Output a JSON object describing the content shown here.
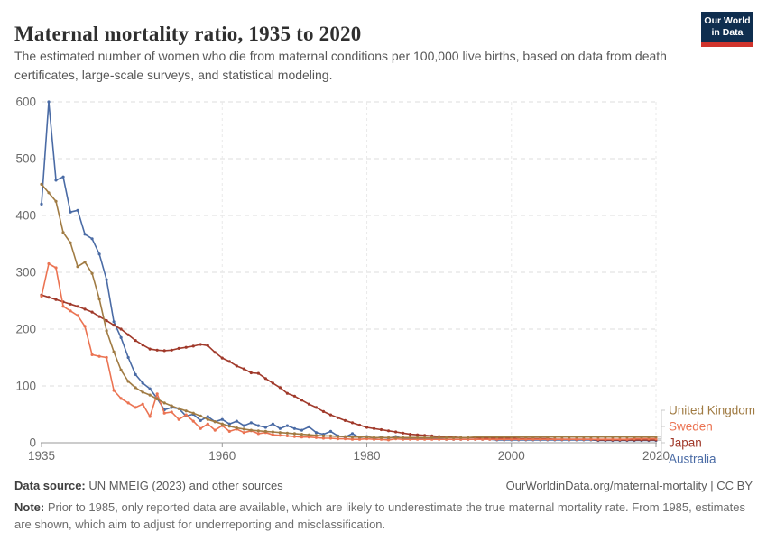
{
  "header": {
    "title": "Maternal mortality ratio, 1935 to 2020",
    "subtitle": "The estimated number of women who die from maternal conditions per 100,000 live births, based on data from death certificates, large-scale surveys, and statistical modeling.",
    "logo": {
      "line1": "Our World",
      "line2": "in Data",
      "bg_color": "#0f2e4f",
      "accent_color": "#d0342c"
    }
  },
  "chart_data": {
    "type": "line",
    "title": "Maternal mortality ratio, 1935 to 2020",
    "ylabel": "",
    "xlabel": "",
    "ylim": [
      0,
      600
    ],
    "yticks": [
      0,
      100,
      200,
      300,
      400,
      500,
      600
    ],
    "xticks": [
      1935,
      1960,
      1980,
      2000,
      2020
    ],
    "start_year": 1935,
    "end_year": 2020,
    "grid": "dashed light-gray horizontal at y ticks and vertical at x ticks",
    "legend_position": "right end-of-line labels with gray connectors",
    "marker": "small filled circles on yearly points",
    "series": [
      {
        "name": "United Kingdom",
        "color": "#a07b43",
        "values": [
          455,
          440,
          425,
          370,
          352,
          310,
          318,
          298,
          253,
          197,
          160,
          128,
          108,
          97,
          89,
          84,
          77,
          70,
          65,
          60,
          56,
          52,
          47,
          41,
          37,
          33,
          29,
          26,
          24,
          22,
          21,
          20,
          19,
          18,
          17,
          16,
          15,
          14,
          13,
          12,
          12,
          11,
          11,
          10,
          10,
          10,
          9,
          9,
          9,
          9,
          9,
          9,
          9,
          9,
          9,
          9,
          9,
          9,
          9,
          9,
          10,
          10,
          10,
          10,
          10,
          10,
          10,
          10,
          10,
          10,
          10,
          10,
          10,
          10,
          10,
          10,
          10,
          10,
          10,
          10,
          10,
          10,
          10,
          10,
          10,
          10
        ]
      },
      {
        "name": "Sweden",
        "color": "#eb7352",
        "values": [
          258,
          315,
          308,
          240,
          232,
          224,
          205,
          155,
          152,
          150,
          92,
          78,
          70,
          62,
          68,
          46,
          86,
          52,
          54,
          41,
          49,
          38,
          25,
          33,
          22,
          30,
          20,
          24,
          18,
          21,
          16,
          18,
          14,
          13,
          12,
          11,
          10,
          10,
          9,
          8,
          8,
          7,
          7,
          6,
          6,
          7,
          6,
          6,
          5,
          7,
          6,
          6,
          6,
          6,
          6,
          6,
          6,
          6,
          6,
          6,
          6,
          6,
          6,
          6,
          6,
          6,
          6,
          6,
          6,
          6,
          6,
          6,
          6,
          6,
          6,
          6,
          6,
          6,
          6,
          6,
          6,
          6,
          7,
          7,
          7,
          7
        ]
      },
      {
        "name": "Japan",
        "color": "#a0392a",
        "values": [
          260,
          256,
          252,
          248,
          244,
          240,
          235,
          230,
          222,
          215,
          207,
          200,
          190,
          180,
          172,
          165,
          163,
          162,
          163,
          166,
          168,
          170,
          173,
          171,
          159,
          149,
          143,
          135,
          130,
          123,
          122,
          113,
          105,
          97,
          87,
          82,
          75,
          68,
          62,
          55,
          49,
          44,
          39,
          35,
          31,
          27,
          25,
          23,
          21,
          19,
          17,
          15,
          14,
          13,
          12,
          11,
          10,
          10,
          9,
          9,
          9,
          8,
          8,
          8,
          8,
          8,
          7,
          7,
          7,
          7,
          7,
          6,
          6,
          6,
          6,
          6,
          6,
          5,
          5,
          5,
          5,
          5,
          5,
          5,
          5,
          5
        ]
      },
      {
        "name": "Australia",
        "color": "#4a6ba5",
        "values": [
          420,
          600,
          462,
          468,
          406,
          409,
          367,
          359,
          332,
          287,
          213,
          185,
          150,
          120,
          105,
          95,
          78,
          58,
          62,
          60,
          47,
          50,
          39,
          46,
          37,
          41,
          33,
          38,
          30,
          35,
          30,
          27,
          33,
          25,
          30,
          25,
          22,
          28,
          18,
          15,
          20,
          12,
          10,
          16,
          9,
          11,
          8,
          10,
          8,
          11,
          8,
          7,
          7,
          7,
          7,
          7,
          6,
          6,
          6,
          6,
          6,
          6,
          6,
          5,
          5,
          5,
          5,
          5,
          5,
          5,
          5,
          5,
          5,
          5,
          5,
          5,
          5,
          4,
          4,
          4,
          4,
          4,
          4,
          4,
          4,
          4
        ]
      }
    ]
  },
  "footer": {
    "source_label": "Data source:",
    "source_text": "UN MMEIG (2023) and other sources",
    "source_right": "OurWorldinData.org/maternal-mortality | CC BY",
    "note_label": "Note:",
    "note_text": "Prior to 1985, only reported data are available, which are likely to underestimate the true maternal mortality rate. From 1985, estimates are shown, which aim to adjust for underreporting and misclassification."
  }
}
